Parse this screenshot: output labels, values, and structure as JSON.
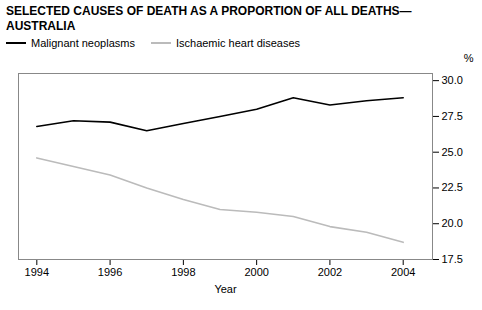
{
  "chart_data": {
    "type": "line",
    "title": "SELECTED CAUSES OF DEATH AS A PROPORTION OF ALL DEATHS—AUSTRALIA",
    "x_label": "Year",
    "y_label": "%",
    "x": [
      1994,
      1995,
      1996,
      1997,
      1998,
      1999,
      2000,
      2001,
      2002,
      2003,
      2004
    ],
    "series": [
      {
        "name": "Malignant neoplasms",
        "color": "#000000",
        "values": [
          26.8,
          27.2,
          27.1,
          26.5,
          27.0,
          27.5,
          28.0,
          28.8,
          28.3,
          28.6,
          28.8
        ]
      },
      {
        "name": "Ischaemic heart diseases",
        "color": "#bbbbbb",
        "values": [
          24.6,
          24.0,
          23.4,
          22.5,
          21.7,
          21.0,
          20.8,
          20.5,
          19.8,
          19.4,
          18.7
        ]
      }
    ],
    "xlim": [
      1993.5,
      2004.8
    ],
    "xticks": [
      1994,
      1996,
      1998,
      2000,
      2002,
      2004
    ],
    "ylim": [
      17.5,
      30.5
    ],
    "yticks": [
      17.5,
      {
        "value": 20.0,
        "label": "20.0"
      },
      22.5,
      {
        "value": 25.0,
        "label": "25.0"
      },
      27.5,
      {
        "value": 30.0,
        "label": "30.0"
      }
    ],
    "legend": "upper left",
    "grid": false
  }
}
